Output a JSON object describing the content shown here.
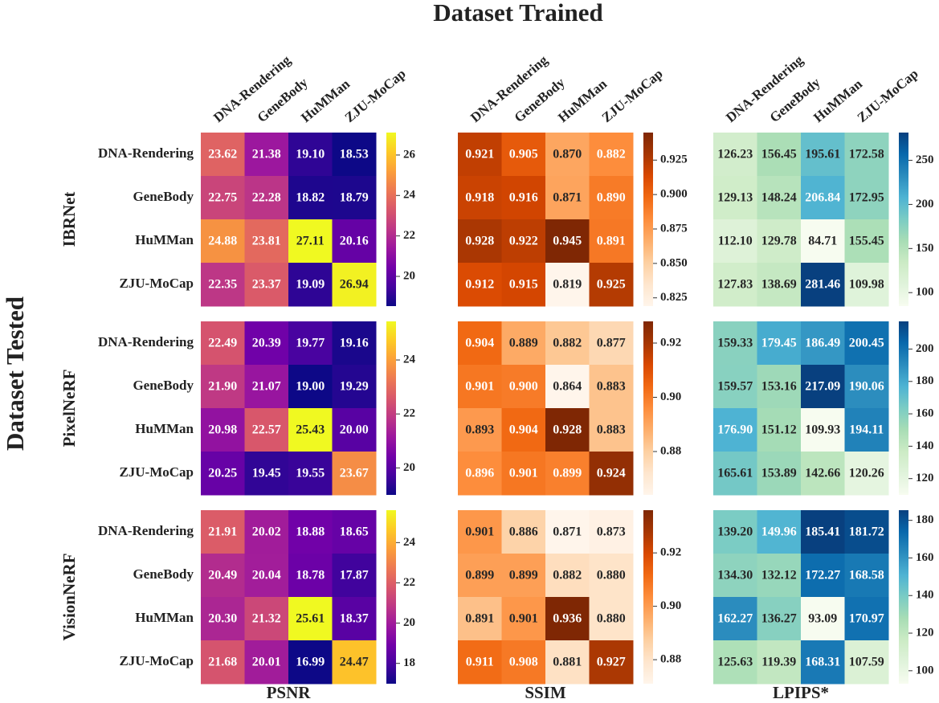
{
  "chart_data": {
    "type": "heatmap",
    "title": "Dataset Trained",
    "ylabel": "Dataset Tested",
    "x_categories": [
      "DNA-Rendering",
      "GeneBody",
      "HuMMan",
      "ZJU-MoCap"
    ],
    "y_categories": [
      "DNA-Rendering",
      "GeneBody",
      "HuMMan",
      "ZJU-MoCap"
    ],
    "rows": [
      "IBRNet",
      "PixelNeRF",
      "VisionNeRF"
    ],
    "columns": [
      {
        "name": "PSNR",
        "colors": [
          "#0d0887",
          "#46039f",
          "#7201a8",
          "#9c179e",
          "#bd3786",
          "#d8576b",
          "#ed7953",
          "#fb9f3a",
          "#fdca26",
          "#f0f921"
        ]
      },
      {
        "name": "SSIM",
        "colors": [
          "#fff5eb",
          "#fee6ce",
          "#fdd0a2",
          "#fdae6b",
          "#fd8d3c",
          "#f16913",
          "#d94801",
          "#a63603",
          "#7f2704"
        ]
      },
      {
        "name": "LPIPS*",
        "colors": [
          "#f7fcf0",
          "#e0f3db",
          "#ccebc5",
          "#a8ddb5",
          "#7bccc4",
          "#4eb3d3",
          "#2b8cbe",
          "#0868ac",
          "#08407f"
        ]
      }
    ],
    "panels": [
      [
        {
          "values": [
            [
              23.62,
              21.38,
              19.1,
              18.53
            ],
            [
              22.75,
              22.28,
              18.82,
              18.79
            ],
            [
              24.88,
              23.81,
              27.11,
              20.16
            ],
            [
              22.35,
              23.37,
              19.09,
              26.94
            ]
          ],
          "value_labels": [
            [
              "23.62",
              "21.38",
              "19.10",
              "18.53"
            ],
            [
              "22.75",
              "22.28",
              "18.82",
              "18.79"
            ],
            [
              "24.88",
              "23.81",
              "27.11",
              "20.16"
            ],
            [
              "22.35",
              "23.37",
              "19.09",
              "26.94"
            ]
          ],
          "clim": [
            18.53,
            27.11
          ],
          "cticks": [
            20,
            22,
            24,
            26
          ]
        },
        {
          "values": [
            [
              0.921,
              0.905,
              0.87,
              0.882
            ],
            [
              0.918,
              0.916,
              0.871,
              0.89
            ],
            [
              0.928,
              0.922,
              0.945,
              0.891
            ],
            [
              0.912,
              0.915,
              0.819,
              0.925
            ]
          ],
          "value_labels": [
            [
              "0.921",
              "0.905",
              "0.870",
              "0.882"
            ],
            [
              "0.918",
              "0.916",
              "0.871",
              "0.890"
            ],
            [
              "0.928",
              "0.922",
              "0.945",
              "0.891"
            ],
            [
              "0.912",
              "0.915",
              "0.819",
              "0.925"
            ]
          ],
          "clim": [
            0.819,
            0.945
          ],
          "cticks": [
            0.825,
            {
              "value": 0.85,
              "label": "0.850"
            },
            0.875,
            {
              "value": 0.9,
              "label": "0.900"
            },
            0.925
          ]
        },
        {
          "values": [
            [
              126.23,
              156.45,
              195.61,
              172.58
            ],
            [
              129.13,
              148.24,
              206.84,
              172.95
            ],
            [
              112.1,
              129.78,
              84.71,
              155.45
            ],
            [
              127.83,
              138.69,
              281.46,
              109.98
            ]
          ],
          "value_labels": [
            [
              "126.23",
              "156.45",
              "195.61",
              "172.58"
            ],
            [
              "129.13",
              "148.24",
              "206.84",
              "172.95"
            ],
            [
              "112.10",
              "129.78",
              "84.71",
              "155.45"
            ],
            [
              "127.83",
              "138.69",
              "281.46",
              "109.98"
            ]
          ],
          "clim": [
            84.71,
            281.46
          ],
          "cticks": [
            100,
            150,
            200,
            250
          ]
        }
      ],
      [
        {
          "values": [
            [
              22.49,
              20.39,
              19.77,
              19.16
            ],
            [
              21.9,
              21.07,
              19.0,
              19.29
            ],
            [
              20.98,
              22.57,
              25.43,
              20.0
            ],
            [
              20.25,
              19.45,
              19.55,
              23.67
            ]
          ],
          "value_labels": [
            [
              "22.49",
              "20.39",
              "19.77",
              "19.16"
            ],
            [
              "21.90",
              "21.07",
              "19.00",
              "19.29"
            ],
            [
              "20.98",
              "22.57",
              "25.43",
              "20.00"
            ],
            [
              "20.25",
              "19.45",
              "19.55",
              "23.67"
            ]
          ],
          "clim": [
            19.0,
            25.43
          ],
          "cticks": [
            20,
            22,
            24
          ]
        },
        {
          "values": [
            [
              0.904,
              0.889,
              0.882,
              0.877
            ],
            [
              0.901,
              0.9,
              0.864,
              0.883
            ],
            [
              0.893,
              0.904,
              0.928,
              0.883
            ],
            [
              0.896,
              0.901,
              0.899,
              0.924
            ]
          ],
          "value_labels": [
            [
              "0.904",
              "0.889",
              "0.882",
              "0.877"
            ],
            [
              "0.901",
              "0.900",
              "0.864",
              "0.883"
            ],
            [
              "0.893",
              "0.904",
              "0.928",
              "0.883"
            ],
            [
              "0.896",
              "0.901",
              "0.899",
              "0.924"
            ]
          ],
          "clim": [
            0.864,
            0.928
          ],
          "cticks": [
            0.88,
            {
              "value": 0.9,
              "label": "0.90"
            },
            0.92
          ]
        },
        {
          "values": [
            [
              159.33,
              179.45,
              186.49,
              200.45
            ],
            [
              159.57,
              153.16,
              217.09,
              190.06
            ],
            [
              176.9,
              151.12,
              109.93,
              194.11
            ],
            [
              165.61,
              153.89,
              142.66,
              120.26
            ]
          ],
          "value_labels": [
            [
              "159.33",
              "179.45",
              "186.49",
              "200.45"
            ],
            [
              "159.57",
              "153.16",
              "217.09",
              "190.06"
            ],
            [
              "176.90",
              "151.12",
              "109.93",
              "194.11"
            ],
            [
              "165.61",
              "153.89",
              "142.66",
              "120.26"
            ]
          ],
          "clim": [
            109.93,
            217.09
          ],
          "cticks": [
            120,
            140,
            160,
            180,
            200
          ]
        }
      ],
      [
        {
          "values": [
            [
              21.91,
              20.02,
              18.88,
              18.65
            ],
            [
              20.49,
              20.04,
              18.78,
              17.87
            ],
            [
              20.3,
              21.32,
              25.61,
              18.37
            ],
            [
              21.68,
              20.01,
              16.99,
              24.47
            ]
          ],
          "value_labels": [
            [
              "21.91",
              "20.02",
              "18.88",
              "18.65"
            ],
            [
              "20.49",
              "20.04",
              "18.78",
              "17.87"
            ],
            [
              "20.30",
              "21.32",
              "25.61",
              "18.37"
            ],
            [
              "21.68",
              "20.01",
              "16.99",
              "24.47"
            ]
          ],
          "clim": [
            16.99,
            25.61
          ],
          "cticks": [
            18,
            20,
            22,
            24
          ]
        },
        {
          "values": [
            [
              0.901,
              0.886,
              0.871,
              0.873
            ],
            [
              0.899,
              0.899,
              0.882,
              0.88
            ],
            [
              0.891,
              0.901,
              0.936,
              0.88
            ],
            [
              0.911,
              0.908,
              0.881,
              0.927
            ]
          ],
          "value_labels": [
            [
              "0.901",
              "0.886",
              "0.871",
              "0.873"
            ],
            [
              "0.899",
              "0.899",
              "0.882",
              "0.880"
            ],
            [
              "0.891",
              "0.901",
              "0.936",
              "0.880"
            ],
            [
              "0.911",
              "0.908",
              "0.881",
              "0.927"
            ]
          ],
          "clim": [
            0.871,
            0.936
          ],
          "cticks": [
            0.88,
            {
              "value": 0.9,
              "label": "0.90"
            },
            0.92
          ]
        },
        {
          "values": [
            [
              139.2,
              149.96,
              185.41,
              181.72
            ],
            [
              134.3,
              132.12,
              172.27,
              168.58
            ],
            [
              162.27,
              136.27,
              93.09,
              170.97
            ],
            [
              125.63,
              119.39,
              168.31,
              107.59
            ]
          ],
          "value_labels": [
            [
              "139.20",
              "149.96",
              "185.41",
              "181.72"
            ],
            [
              "134.30",
              "132.12",
              "172.27",
              "168.58"
            ],
            [
              "162.27",
              "136.27",
              "93.09",
              "170.97"
            ],
            [
              "125.63",
              "119.39",
              "168.31",
              "107.59"
            ]
          ],
          "clim": [
            93.09,
            185.41
          ],
          "cticks": [
            100,
            120,
            140,
            160,
            180
          ]
        }
      ]
    ]
  }
}
